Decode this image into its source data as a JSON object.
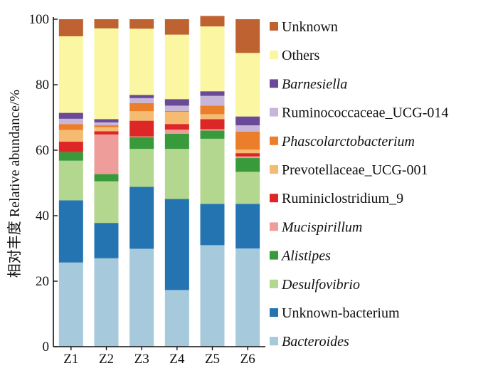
{
  "chart_data": {
    "type": "bar",
    "stacked": true,
    "title": "",
    "xlabel": "",
    "ylabel": "相对丰度  Relative abundance/%",
    "ylim": [
      0,
      100
    ],
    "yticks": [
      0,
      20,
      40,
      60,
      80,
      100
    ],
    "grid": false,
    "legend_position": "right",
    "categories": [
      "Z1",
      "Z2",
      "Z3",
      "Z4",
      "Z5",
      "Z6"
    ],
    "series": [
      {
        "name": "Bacteroides",
        "italic": true,
        "color": "#a6c9dc",
        "values": [
          25.7,
          27.0,
          29.9,
          17.3,
          31.0,
          30.0
        ]
      },
      {
        "name": "Unknown-bacterium",
        "italic": false,
        "color": "#2474b2",
        "values": [
          19.0,
          10.8,
          18.9,
          27.8,
          12.6,
          13.6
        ]
      },
      {
        "name": "Desulfovibrio",
        "italic": true,
        "color": "#b3d78e",
        "values": [
          12.1,
          12.7,
          11.6,
          15.3,
          19.9,
          9.8
        ]
      },
      {
        "name": "Alistipes",
        "italic": true,
        "color": "#389a3b",
        "values": [
          2.6,
          2.2,
          3.6,
          4.6,
          2.5,
          4.2
        ]
      },
      {
        "name": "Mucispirillum",
        "italic": true,
        "color": "#ef9d9b",
        "values": [
          0.0,
          12.1,
          0.2,
          1.3,
          0.4,
          0.5
        ]
      },
      {
        "name": "Ruminiclostridium_9",
        "italic": false,
        "color": "#dd2727",
        "values": [
          3.2,
          1.0,
          4.8,
          1.7,
          3.1,
          1.0
        ]
      },
      {
        "name": "Prevotellaceae_UCG-001",
        "italic": false,
        "color": "#f5bb72",
        "values": [
          3.6,
          1.2,
          2.9,
          3.7,
          1.5,
          1.1
        ]
      },
      {
        "name": "Phascolarctobacterium",
        "italic": true,
        "color": "#ea7e2a",
        "values": [
          1.8,
          0.6,
          2.5,
          0.3,
          2.6,
          5.5
        ]
      },
      {
        "name": "Ruminococcaceae_UCG-014",
        "italic": false,
        "color": "#c7b6d8",
        "values": [
          1.6,
          0.9,
          1.5,
          1.6,
          3.0,
          1.9
        ]
      },
      {
        "name": "Barnesiella",
        "italic": true,
        "color": "#6a4998",
        "values": [
          1.8,
          1.0,
          1.0,
          2.0,
          1.4,
          2.7
        ]
      },
      {
        "name": "Others",
        "italic": false,
        "color": "#fbf6a1",
        "values": [
          23.4,
          27.7,
          20.2,
          19.7,
          19.8,
          19.4
        ]
      },
      {
        "name": "Unknown",
        "italic": false,
        "color": "#bd6230",
        "values": [
          5.2,
          2.8,
          2.9,
          4.7,
          3.2,
          10.3
        ]
      }
    ]
  }
}
